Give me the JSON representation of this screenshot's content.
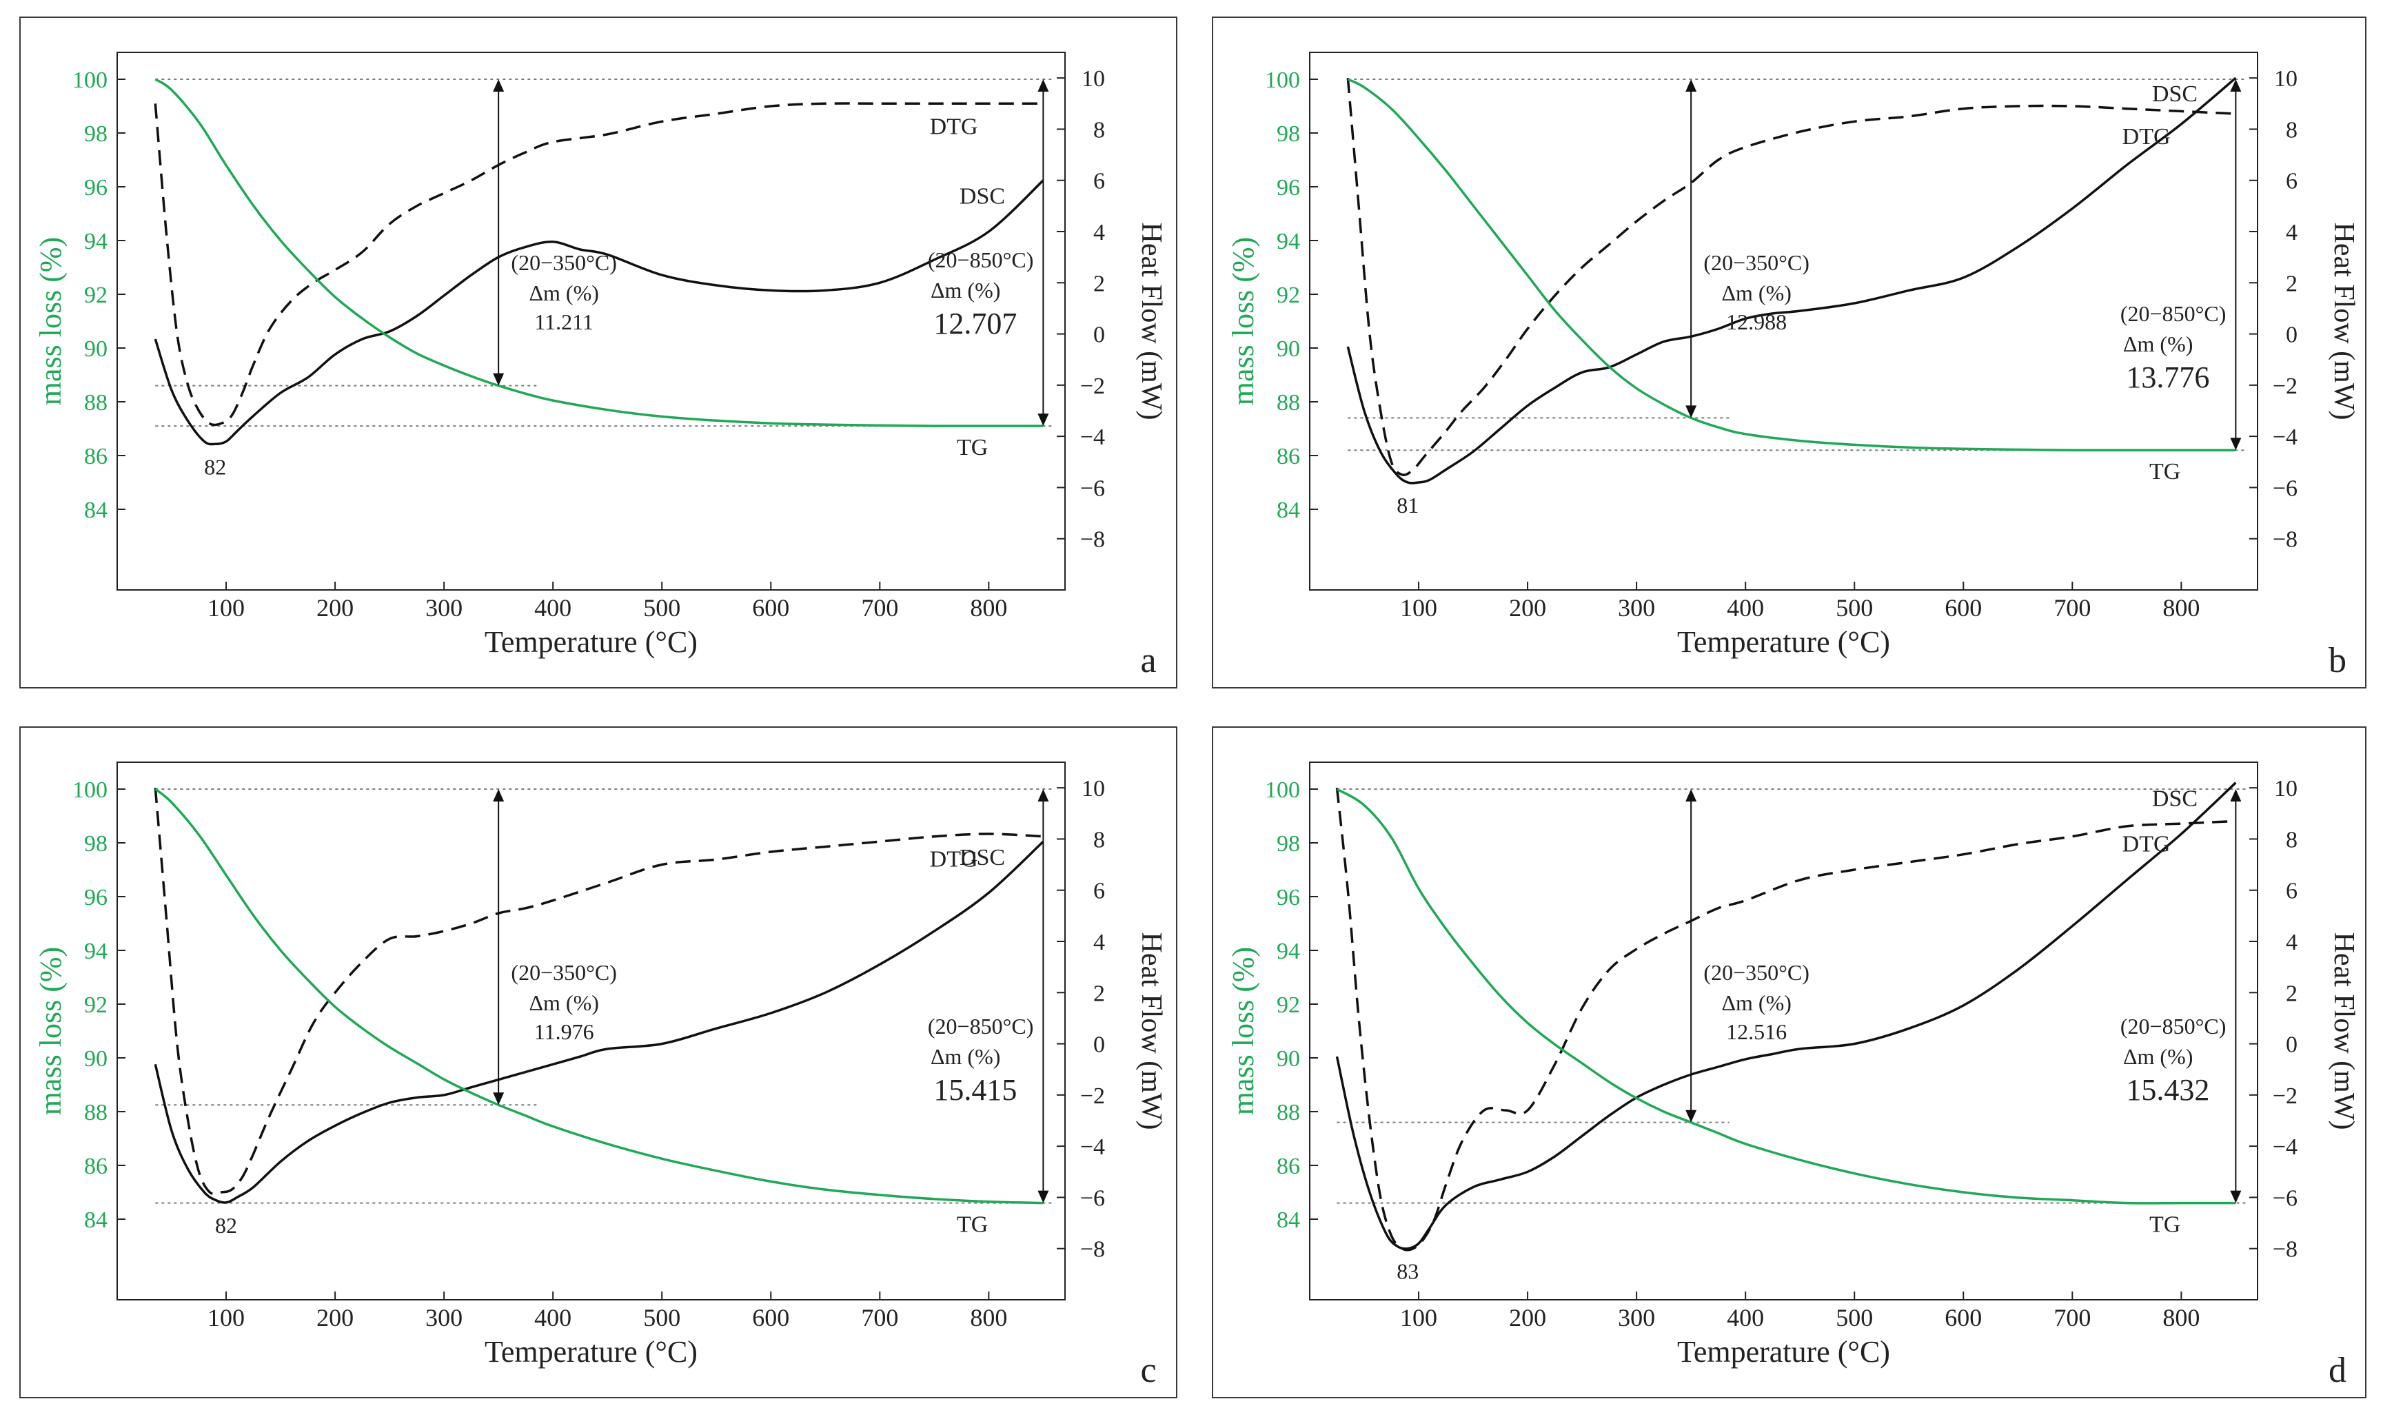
{
  "colors": {
    "tg": "#1fa855",
    "axis": "#222222",
    "guide": "#7a7a7a"
  },
  "chart_data": [
    {
      "type": "line",
      "panel_label": "a",
      "xlabel": "Temperature (°C)",
      "ylabel_left": "mass loss (%)",
      "ylabel_right": "Heat Flow  (mW)",
      "xlim": [
        0,
        870
      ],
      "ylim_left": [
        81,
        101
      ],
      "ylim_right": [
        -10,
        11
      ],
      "x_ticks": [
        100,
        200,
        300,
        400,
        500,
        600,
        700,
        800
      ],
      "y_left_ticks": [
        84,
        86,
        88,
        90,
        92,
        94,
        96,
        98,
        100
      ],
      "y_right_ticks": [
        -8,
        -6,
        -4,
        -2,
        0,
        2,
        4,
        6,
        8,
        10
      ],
      "series": [
        {
          "name": "TG",
          "axis": "left",
          "style": "solid-green",
          "x": [
            35,
            50,
            75,
            100,
            125,
            150,
            175,
            200,
            225,
            250,
            275,
            300,
            325,
            350,
            375,
            400,
            450,
            500,
            550,
            600,
            650,
            700,
            750,
            800,
            850
          ],
          "values": [
            100,
            99.6,
            98.4,
            96.8,
            95.3,
            94,
            92.9,
            91.9,
            91.1,
            90.4,
            89.8,
            89.35,
            88.95,
            88.6,
            88.3,
            88.05,
            87.7,
            87.45,
            87.3,
            87.2,
            87.15,
            87.12,
            87.1,
            87.1,
            87.1
          ]
        },
        {
          "name": "DTG",
          "axis": "right",
          "style": "dashed",
          "x": [
            35,
            45,
            55,
            65,
            75,
            85,
            95,
            105,
            115,
            125,
            140,
            160,
            180,
            200,
            225,
            250,
            275,
            300,
            325,
            350,
            375,
            400,
            450,
            500,
            550,
            600,
            650,
            700,
            750,
            800,
            850
          ],
          "values": [
            9,
            4,
            0,
            -2,
            -3,
            -3.5,
            -3.5,
            -3.2,
            -2.3,
            -1.2,
            0.2,
            1.3,
            2,
            2.5,
            3.2,
            4.3,
            5,
            5.5,
            6,
            6.6,
            7.1,
            7.5,
            7.8,
            8.3,
            8.6,
            8.9,
            9,
            9,
            9,
            9,
            9
          ]
        },
        {
          "name": "DSC",
          "axis": "right",
          "style": "solid-black",
          "x": [
            35,
            50,
            65,
            80,
            90,
            100,
            110,
            125,
            150,
            175,
            200,
            225,
            250,
            275,
            300,
            325,
            350,
            375,
            400,
            425,
            450,
            500,
            550,
            600,
            650,
            700,
            750,
            800,
            850
          ],
          "values": [
            -0.2,
            -2.2,
            -3.4,
            -4.2,
            -4.3,
            -4.2,
            -3.8,
            -3.2,
            -2.3,
            -1.7,
            -0.8,
            -0.2,
            0.1,
            0.7,
            1.5,
            2.3,
            3,
            3.4,
            3.6,
            3.3,
            3.1,
            2.3,
            1.9,
            1.7,
            1.7,
            2,
            2.9,
            4,
            6
          ]
        }
      ],
      "annotations": {
        "min_label": "82",
        "dtg_label": "DTG",
        "dsc_label": "DSC",
        "tg_label": "TG",
        "range1": "(20−350°C)",
        "dm1": "Δm (%)",
        "val1": "11.211",
        "range2": "(20−850°C)",
        "dm2": "Δm (%)",
        "val2": "12.707"
      }
    },
    {
      "type": "line",
      "panel_label": "b",
      "xlabel": "Temperature (°C)",
      "ylabel_left": "mass loss (%)",
      "ylabel_right": "Heat Flow  (mW)",
      "xlim": [
        0,
        870
      ],
      "ylim_left": [
        81,
        101
      ],
      "ylim_right": [
        -10,
        11
      ],
      "x_ticks": [
        100,
        200,
        300,
        400,
        500,
        600,
        700,
        800
      ],
      "y_left_ticks": [
        84,
        86,
        88,
        90,
        92,
        94,
        96,
        98,
        100
      ],
      "y_right_ticks": [
        -8,
        -6,
        -4,
        -2,
        0,
        2,
        4,
        6,
        8,
        10
      ],
      "series": [
        {
          "name": "TG",
          "axis": "left",
          "style": "solid-green",
          "x": [
            35,
            50,
            75,
            100,
            125,
            150,
            175,
            200,
            225,
            250,
            275,
            300,
            325,
            350,
            375,
            400,
            450,
            500,
            550,
            600,
            650,
            700,
            750,
            800,
            850
          ],
          "values": [
            100,
            99.7,
            98.9,
            97.8,
            96.6,
            95.3,
            94,
            92.7,
            91.4,
            90.3,
            89.3,
            88.5,
            87.9,
            87.4,
            87.05,
            86.8,
            86.55,
            86.4,
            86.3,
            86.25,
            86.22,
            86.2,
            86.2,
            86.2,
            86.2
          ]
        },
        {
          "name": "DTG",
          "axis": "right",
          "style": "dashed",
          "x": [
            35,
            45,
            55,
            65,
            75,
            85,
            95,
            105,
            115,
            125,
            140,
            160,
            180,
            200,
            225,
            250,
            275,
            300,
            325,
            350,
            375,
            400,
            450,
            500,
            550,
            600,
            650,
            700,
            750,
            800,
            850
          ],
          "values": [
            10,
            5,
            0,
            -3,
            -5,
            -5.5,
            -5.3,
            -4.8,
            -4.3,
            -3.8,
            -3,
            -2.1,
            -1,
            0.2,
            1.5,
            2.6,
            3.5,
            4.4,
            5.2,
            5.9,
            6.8,
            7.3,
            7.9,
            8.3,
            8.5,
            8.8,
            8.9,
            8.9,
            8.8,
            8.7,
            8.6
          ]
        },
        {
          "name": "DSC",
          "axis": "right",
          "style": "solid-black",
          "x": [
            35,
            50,
            65,
            80,
            90,
            100,
            110,
            125,
            150,
            175,
            200,
            225,
            250,
            275,
            300,
            325,
            350,
            375,
            400,
            425,
            450,
            500,
            550,
            600,
            650,
            700,
            750,
            800,
            850
          ],
          "values": [
            -0.5,
            -3,
            -4.6,
            -5.5,
            -5.8,
            -5.8,
            -5.7,
            -5.3,
            -4.6,
            -3.7,
            -2.8,
            -2.1,
            -1.5,
            -1.3,
            -0.8,
            -0.3,
            -0.1,
            0.2,
            0.6,
            0.8,
            0.9,
            1.2,
            1.7,
            2.2,
            3.4,
            4.9,
            6.6,
            8.2,
            10
          ]
        }
      ],
      "annotations": {
        "min_label": "81",
        "dtg_label": "DTG",
        "dsc_label": "DSC",
        "tg_label": "TG",
        "range1": "(20−350°C)",
        "dm1": "Δm (%)",
        "val1": "12.988",
        "range2": "(20−850°C)",
        "dm2": "Δm (%)",
        "val2": "13.776"
      }
    },
    {
      "type": "line",
      "panel_label": "c",
      "xlabel": "Temperature (°C)",
      "ylabel_left": "mass loss (%)",
      "ylabel_right": "Heat Flow  (mW)",
      "xlim": [
        0,
        870
      ],
      "ylim_left": [
        81,
        101
      ],
      "ylim_right": [
        -10,
        11
      ],
      "x_ticks": [
        100,
        200,
        300,
        400,
        500,
        600,
        700,
        800
      ],
      "y_left_ticks": [
        84,
        86,
        88,
        90,
        92,
        94,
        96,
        98,
        100
      ],
      "y_right_ticks": [
        -8,
        -6,
        -4,
        -2,
        0,
        2,
        4,
        6,
        8,
        10
      ],
      "series": [
        {
          "name": "TG",
          "axis": "left",
          "style": "solid-green",
          "x": [
            35,
            50,
            75,
            100,
            125,
            150,
            175,
            200,
            225,
            250,
            275,
            300,
            325,
            350,
            375,
            400,
            450,
            500,
            550,
            600,
            650,
            700,
            750,
            800,
            850
          ],
          "values": [
            100,
            99.5,
            98.3,
            96.8,
            95.3,
            94,
            92.9,
            91.9,
            91.1,
            90.4,
            89.8,
            89.2,
            88.7,
            88.25,
            87.85,
            87.45,
            86.8,
            86.25,
            85.8,
            85.4,
            85.1,
            84.9,
            84.75,
            84.65,
            84.6
          ]
        },
        {
          "name": "DTG",
          "axis": "right",
          "style": "dashed",
          "x": [
            35,
            45,
            55,
            65,
            75,
            85,
            95,
            105,
            115,
            125,
            140,
            160,
            180,
            200,
            225,
            250,
            275,
            300,
            325,
            350,
            375,
            400,
            450,
            500,
            550,
            600,
            650,
            700,
            750,
            800,
            850
          ],
          "values": [
            10,
            5,
            0,
            -3,
            -5,
            -5.8,
            -5.8,
            -5.7,
            -5.2,
            -4.3,
            -2.8,
            -1,
            0.8,
            2,
            3.2,
            4.1,
            4.2,
            4.4,
            4.7,
            5.1,
            5.3,
            5.6,
            6.3,
            7,
            7.2,
            7.5,
            7.7,
            7.9,
            8.1,
            8.2,
            8.1
          ]
        },
        {
          "name": "DSC",
          "axis": "right",
          "style": "solid-black",
          "x": [
            35,
            50,
            65,
            80,
            90,
            100,
            110,
            125,
            150,
            175,
            200,
            225,
            250,
            275,
            300,
            325,
            350,
            375,
            400,
            425,
            450,
            500,
            550,
            600,
            650,
            700,
            750,
            800,
            850
          ],
          "values": [
            -0.8,
            -3.4,
            -4.9,
            -5.8,
            -6.1,
            -6.2,
            -6,
            -5.6,
            -4.6,
            -3.8,
            -3.2,
            -2.7,
            -2.3,
            -2.1,
            -2,
            -1.7,
            -1.4,
            -1.1,
            -0.8,
            -0.5,
            -0.2,
            0,
            0.6,
            1.2,
            2,
            3.1,
            4.4,
            5.9,
            7.9
          ]
        }
      ],
      "annotations": {
        "min_label": "82",
        "dtg_label": "DTG",
        "dsc_label": "DSC",
        "tg_label": "TG",
        "range1": "(20−350°C)",
        "dm1": "Δm (%)",
        "val1": "11.976",
        "range2": "(20−850°C)",
        "dm2": "Δm (%)",
        "val2": "15.415"
      }
    },
    {
      "type": "line",
      "panel_label": "d",
      "xlabel": "Temperature (°C)",
      "ylabel_left": "mass loss (%)",
      "ylabel_right": "Heat Flow  (mW)",
      "xlim": [
        0,
        870
      ],
      "ylim_left": [
        81,
        101
      ],
      "ylim_right": [
        -10,
        11
      ],
      "x_ticks": [
        100,
        200,
        300,
        400,
        500,
        600,
        700,
        800
      ],
      "y_left_ticks": [
        84,
        86,
        88,
        90,
        92,
        94,
        96,
        98,
        100
      ],
      "y_right_ticks": [
        -8,
        -6,
        -4,
        -2,
        0,
        2,
        4,
        6,
        8,
        10
      ],
      "series": [
        {
          "name": "TG",
          "axis": "left",
          "style": "solid-green",
          "x": [
            25,
            50,
            75,
            100,
            125,
            150,
            175,
            200,
            225,
            250,
            275,
            300,
            325,
            350,
            375,
            400,
            450,
            500,
            550,
            600,
            650,
            700,
            750,
            800,
            850
          ],
          "values": [
            100,
            99.4,
            98.2,
            96.3,
            94.8,
            93.5,
            92.3,
            91.3,
            90.5,
            89.8,
            89.1,
            88.5,
            88,
            87.6,
            87.2,
            86.8,
            86.2,
            85.7,
            85.3,
            85,
            84.8,
            84.7,
            84.6,
            84.6,
            84.6
          ]
        },
        {
          "name": "DTG",
          "axis": "right",
          "style": "dashed",
          "x": [
            25,
            35,
            45,
            55,
            65,
            75,
            85,
            95,
            105,
            115,
            125,
            140,
            160,
            180,
            200,
            225,
            250,
            275,
            300,
            325,
            350,
            375,
            400,
            450,
            500,
            550,
            600,
            650,
            700,
            750,
            800,
            850
          ],
          "values": [
            10,
            6,
            1,
            -3,
            -6,
            -7.5,
            -8,
            -8,
            -7.6,
            -6.8,
            -5.5,
            -3.8,
            -2.6,
            -2.6,
            -2.6,
            -0.8,
            1.4,
            2.9,
            3.7,
            4.3,
            4.8,
            5.3,
            5.6,
            6.4,
            6.8,
            7.1,
            7.4,
            7.8,
            8.1,
            8.5,
            8.6,
            8.7
          ]
        },
        {
          "name": "DSC",
          "axis": "right",
          "style": "solid-black",
          "x": [
            25,
            40,
            55,
            70,
            80,
            90,
            100,
            110,
            125,
            150,
            175,
            200,
            225,
            250,
            275,
            300,
            325,
            350,
            375,
            400,
            425,
            450,
            500,
            550,
            600,
            650,
            700,
            750,
            800,
            850
          ],
          "values": [
            -0.5,
            -3.5,
            -5.8,
            -7.4,
            -7.9,
            -8,
            -7.8,
            -7.2,
            -6.3,
            -5.6,
            -5.3,
            -5,
            -4.4,
            -3.6,
            -2.8,
            -2.1,
            -1.6,
            -1.2,
            -0.9,
            -0.6,
            -0.4,
            -0.2,
            0,
            0.6,
            1.5,
            2.9,
            4.6,
            6.4,
            8.2,
            10.2
          ]
        }
      ],
      "annotations": {
        "min_label": "83",
        "dtg_label": "DTG",
        "dsc_label": "DSC",
        "tg_label": "TG",
        "range1": "(20−350°C)",
        "dm1": "Δm (%)",
        "val1": "12.516",
        "range2": "(20−850°C)",
        "dm2": "Δm (%)",
        "val2": "15.432"
      }
    }
  ]
}
